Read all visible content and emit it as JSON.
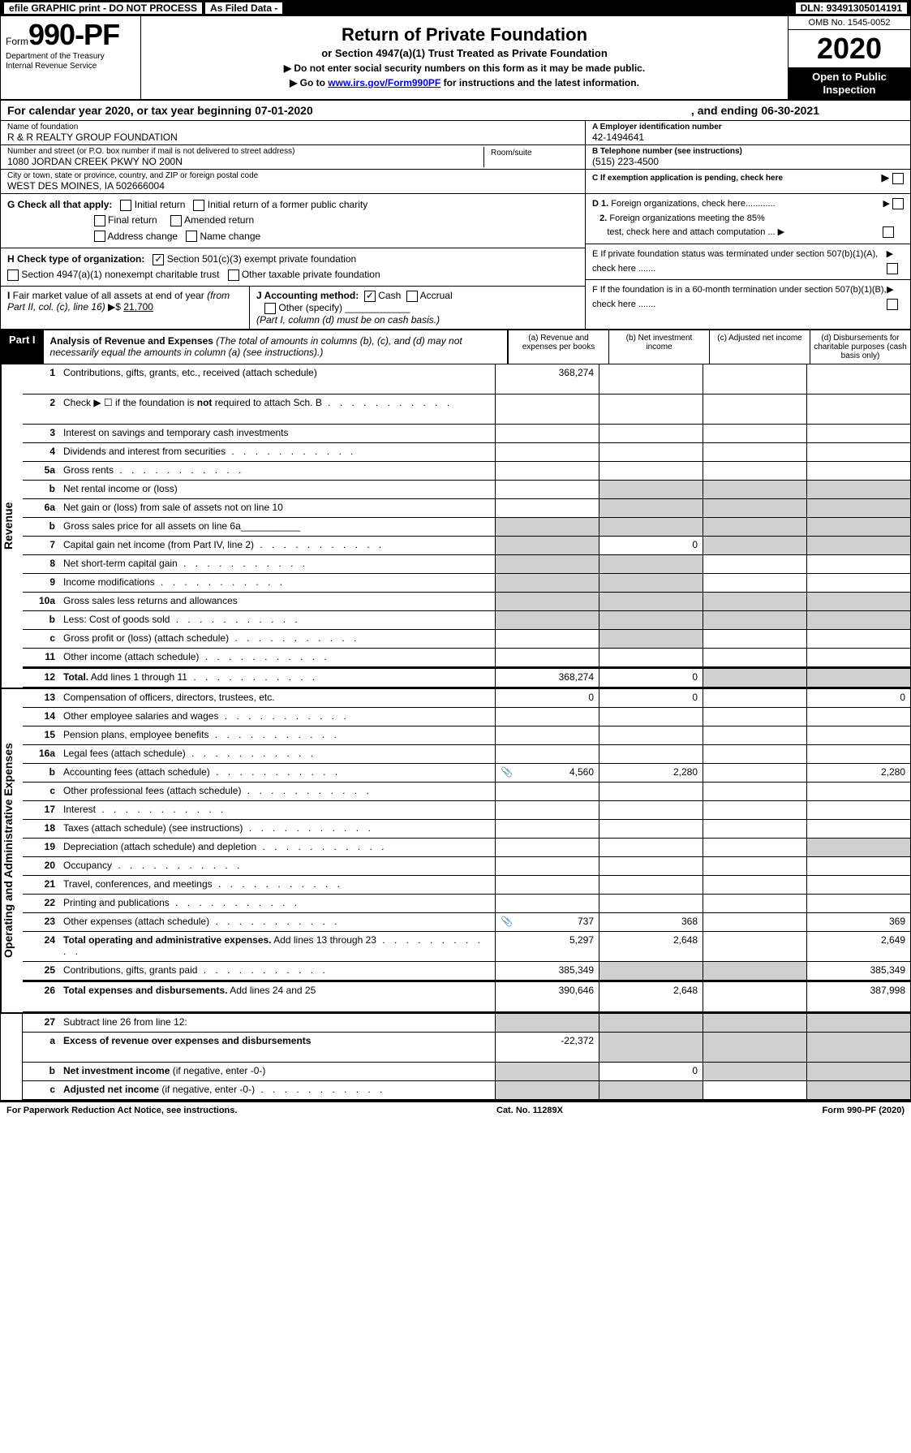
{
  "top_bar": {
    "efile": "efile GRAPHIC print - DO NOT PROCESS",
    "asfiled": "As Filed Data -",
    "dln_label": "DLN: ",
    "dln": "93491305014191"
  },
  "header": {
    "form_small": "Form",
    "form_big": "990-PF",
    "dept1": "Department of the Treasury",
    "dept2": "Internal Revenue Service",
    "title": "Return of Private Foundation",
    "subtitle": "or Section 4947(a)(1) Trust Treated as Private Foundation",
    "instr1": "▶ Do not enter social security numbers on this form as it may be made public.",
    "instr2_prefix": "▶ Go to ",
    "instr2_link": "www.irs.gov/Form990PF",
    "instr2_suffix": " for instructions and the latest information.",
    "omb": "OMB No. 1545-0052",
    "year": "2020",
    "inspection": "Open to Public Inspection"
  },
  "calyear": {
    "prefix": "For calendar year 2020, or tax year beginning ",
    "begin": "07-01-2020",
    "mid": ", and ending ",
    "end": "06-30-2021"
  },
  "info": {
    "name_label": "Name of foundation",
    "name": "R & R REALTY GROUP FOUNDATION",
    "street_label": "Number and street (or P.O. box number if mail is not delivered to street address)",
    "street": "1080 JORDAN CREEK PKWY NO 200N",
    "room_label": "Room/suite",
    "city_label": "City or town, state or province, country, and ZIP or foreign postal code",
    "city": "WEST DES MOINES, IA 502666004",
    "a_label": "A Employer identification number",
    "a_value": "42-1494641",
    "b_label": "B Telephone number (see instructions)",
    "b_value": "(515) 223-4500",
    "c_label": "C If exemption application is pending, check here"
  },
  "checks": {
    "g_label": "G Check all that apply:",
    "g1": "Initial return",
    "g2": "Initial return of a former public charity",
    "g3": "Final return",
    "g4": "Amended return",
    "g5": "Address change",
    "g6": "Name change",
    "h_label": "H Check type of organization:",
    "h1": "Section 501(c)(3) exempt private foundation",
    "h2": "Section 4947(a)(1) nonexempt charitable trust",
    "h3": "Other taxable private foundation",
    "i_label": "I Fair market value of all assets at end of year (from Part II, col. (c), line 16) ▶$ ",
    "i_value": "21,700",
    "j_label": "J Accounting method:",
    "j1": "Cash",
    "j2": "Accrual",
    "j3": "Other (specify)",
    "j_note": "(Part I, column (d) must be on cash basis.)",
    "d1": "D 1. Foreign organizations, check here............",
    "d2": "2. Foreign organizations meeting the 85% test, check here and attach computation ... ▶",
    "e": "E If private foundation status was terminated under section 507(b)(1)(A), check here .......",
    "f": "F If the foundation is in a 60-month termination under section 507(b)(1)(B), check here ......."
  },
  "part1": {
    "label": "Part I",
    "title": "Analysis of Revenue and Expenses",
    "subtitle": "(The total of amounts in columns (b), (c), and (d) may not necessarily equal the amounts in column (a) (see instructions).)",
    "col_a": "(a) Revenue and expenses per books",
    "col_b": "(b) Net investment income",
    "col_c": "(c) Adjusted net income",
    "col_d": "(d) Disbursements for charitable purposes (cash basis only)"
  },
  "side_labels": {
    "revenue": "Revenue",
    "expenses": "Operating and Administrative Expenses"
  },
  "rows": [
    {
      "n": "1",
      "desc": "Contributions, gifts, grants, etc., received (attach schedule)",
      "a": "368,274",
      "tall": true
    },
    {
      "n": "2",
      "desc": "Check ▶ ☐ if the foundation is <b>not</b> required to attach Sch. B",
      "tall": true,
      "dots": true
    },
    {
      "n": "3",
      "desc": "Interest on savings and temporary cash investments"
    },
    {
      "n": "4",
      "desc": "Dividends and interest from securities",
      "dots": true
    },
    {
      "n": "5a",
      "desc": "Gross rents",
      "dots": true
    },
    {
      "n": "b",
      "desc": "Net rental income or (loss)",
      "shade_bcd": true
    },
    {
      "n": "6a",
      "desc": "Net gain or (loss) from sale of assets not on line 10",
      "shade_bcd": true
    },
    {
      "n": "b",
      "desc": "Gross sales price for all assets on line 6a___________",
      "shade_all": true
    },
    {
      "n": "7",
      "desc": "Capital gain net income (from Part IV, line 2)",
      "dots": true,
      "b": "0",
      "shade_a": true,
      "shade_cd": true
    },
    {
      "n": "8",
      "desc": "Net short-term capital gain",
      "dots": true,
      "shade_ab": true
    },
    {
      "n": "9",
      "desc": "Income modifications",
      "dots": true,
      "shade_ab": true
    },
    {
      "n": "10a",
      "desc": "Gross sales less returns and allowances",
      "shade_all": true
    },
    {
      "n": "b",
      "desc": "Less: Cost of goods sold",
      "dots": true,
      "shade_all": true
    },
    {
      "n": "c",
      "desc": "Gross profit or (loss) (attach schedule)",
      "dots": true,
      "shade_b": true
    },
    {
      "n": "11",
      "desc": "Other income (attach schedule)",
      "dots": true
    },
    {
      "n": "12",
      "desc": "<b>Total.</b> Add lines 1 through 11",
      "dots": true,
      "a": "368,274",
      "b": "0",
      "shade_cd": true,
      "sep": true
    }
  ],
  "exp_rows": [
    {
      "n": "13",
      "desc": "Compensation of officers, directors, trustees, etc.",
      "a": "0",
      "b": "0",
      "d": "0"
    },
    {
      "n": "14",
      "desc": "Other employee salaries and wages",
      "dots": true
    },
    {
      "n": "15",
      "desc": "Pension plans, employee benefits",
      "dots": true
    },
    {
      "n": "16a",
      "desc": "Legal fees (attach schedule)",
      "dots": true
    },
    {
      "n": "b",
      "desc": "Accounting fees (attach schedule)",
      "dots": true,
      "icon": true,
      "a": "4,560",
      "b": "2,280",
      "d": "2,280"
    },
    {
      "n": "c",
      "desc": "Other professional fees (attach schedule)",
      "dots": true
    },
    {
      "n": "17",
      "desc": "Interest",
      "dots": true
    },
    {
      "n": "18",
      "desc": "Taxes (attach schedule) (see instructions)",
      "dots": true
    },
    {
      "n": "19",
      "desc": "Depreciation (attach schedule) and depletion",
      "dots": true,
      "shade_d": true
    },
    {
      "n": "20",
      "desc": "Occupancy",
      "dots": true
    },
    {
      "n": "21",
      "desc": "Travel, conferences, and meetings",
      "dots": true
    },
    {
      "n": "22",
      "desc": "Printing and publications",
      "dots": true
    },
    {
      "n": "23",
      "desc": "Other expenses (attach schedule)",
      "dots": true,
      "icon": true,
      "a": "737",
      "b": "368",
      "d": "369"
    },
    {
      "n": "24",
      "desc": "<b>Total operating and administrative expenses.</b> Add lines 13 through 23",
      "dots": true,
      "a": "5,297",
      "b": "2,648",
      "d": "2,649",
      "tall": true
    },
    {
      "n": "25",
      "desc": "Contributions, gifts, grants paid",
      "dots": true,
      "a": "385,349",
      "shade_bc": true,
      "d": "385,349"
    },
    {
      "n": "26",
      "desc": "<b>Total expenses and disbursements.</b> Add lines 24 and 25",
      "a": "390,646",
      "b": "2,648",
      "d": "387,998",
      "tall": true,
      "sep": true
    }
  ],
  "final_rows": [
    {
      "n": "27",
      "desc": "Subtract line 26 from line 12:",
      "shade_all": true
    },
    {
      "n": "a",
      "desc": "<b>Excess of revenue over expenses and disbursements</b>",
      "a": "-22,372",
      "shade_bcd": true,
      "tall": true
    },
    {
      "n": "b",
      "desc": "<b>Net investment income</b> (if negative, enter -0-)",
      "b": "0",
      "shade_a": true,
      "shade_cd": true
    },
    {
      "n": "c",
      "desc": "<b>Adjusted net income</b> (if negative, enter -0-)",
      "dots": true,
      "shade_ab": true,
      "shade_d": true
    }
  ],
  "footer": {
    "left": "For Paperwork Reduction Act Notice, see instructions.",
    "center": "Cat. No. 11289X",
    "right": "Form 990-PF (2020)"
  }
}
